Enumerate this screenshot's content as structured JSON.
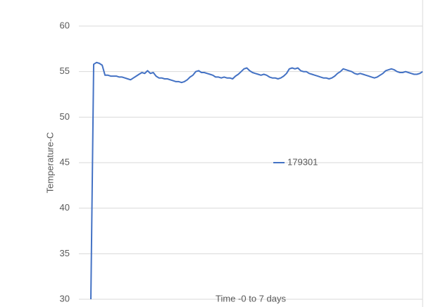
{
  "chart_data": {
    "type": "line",
    "x_label": "Time -0 to 7 days",
    "y_label": "Temperature-C",
    "ylim": [
      30,
      60
    ],
    "yticks": [
      30,
      35,
      40,
      45,
      50,
      55,
      60
    ],
    "grid": true,
    "legend": "center",
    "series": [
      {
        "name": "179301",
        "color": "#4472c4",
        "values": [
          30,
          55.8,
          56,
          55.9,
          55.7,
          54.6,
          54.6,
          54.5,
          54.5,
          54.5,
          54.4,
          54.4,
          54.3,
          54.2,
          54.1,
          54.3,
          54.5,
          54.7,
          54.9,
          54.8,
          55.1,
          54.8,
          54.9,
          54.5,
          54.3,
          54.3,
          54.2,
          54.2,
          54.1,
          54.0,
          53.9,
          53.9,
          53.8,
          53.9,
          54.1,
          54.4,
          54.6,
          55.0,
          55.1,
          54.9,
          54.9,
          54.8,
          54.7,
          54.6,
          54.4,
          54.4,
          54.3,
          54.4,
          54.3,
          54.3,
          54.2,
          54.5,
          54.7,
          55.0,
          55.3,
          55.4,
          55.1,
          54.9,
          54.8,
          54.7,
          54.6,
          54.7,
          54.6,
          54.4,
          54.3,
          54.3,
          54.2,
          54.3,
          54.5,
          54.8,
          55.3,
          55.4,
          55.3,
          55.4,
          55.1,
          55.0,
          55.0,
          54.8,
          54.7,
          54.6,
          54.5,
          54.4,
          54.3,
          54.3,
          54.2,
          54.3,
          54.5,
          54.8,
          55.0,
          55.3,
          55.2,
          55.1,
          55.0,
          54.8,
          54.7,
          54.8,
          54.7,
          54.6,
          54.5,
          54.4,
          54.3,
          54.4,
          54.6,
          54.8,
          55.1,
          55.2,
          55.3,
          55.2,
          55.0,
          54.9,
          54.9,
          55.0,
          54.9,
          54.8,
          54.7,
          54.7,
          54.8,
          55.0
        ]
      }
    ]
  }
}
